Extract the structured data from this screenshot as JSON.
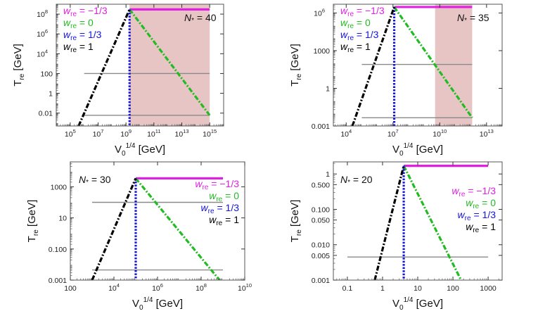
{
  "chart_data": [
    {
      "type": "line",
      "panel": "top-left",
      "title": "",
      "xlabel": "V0^1/4 [GeV]",
      "ylabel": "T re [GeV]",
      "x_scale": "log",
      "y_scale": "log",
      "xlim": [
        10000,
        1e+16
      ],
      "ylim": [
        0.0005,
        1000000000.0
      ],
      "x_ticks": [
        {
          "v": 100000.0,
          "b": "10",
          "e": "5"
        },
        {
          "v": 10000000.0,
          "b": "10",
          "e": "7"
        },
        {
          "v": 1000000000.0,
          "b": "10",
          "e": "9"
        },
        {
          "v": 100000000000.0,
          "b": "10",
          "e": "11"
        },
        {
          "v": 10000000000000.0,
          "b": "10",
          "e": "13"
        },
        {
          "v": 1000000000000000.0,
          "b": "10",
          "e": "15"
        }
      ],
      "y_ticks": [
        {
          "v": 0.01,
          "b": "0.01",
          "e": ""
        },
        {
          "v": 1,
          "b": "1",
          "e": ""
        },
        {
          "v": 100,
          "b": "100",
          "e": ""
        },
        {
          "v": 10000,
          "b": "10",
          "e": "4"
        },
        {
          "v": 1000000.0,
          "b": "10",
          "e": "6"
        },
        {
          "v": 100000000.0,
          "b": "10",
          "e": "8"
        }
      ],
      "annotation": {
        "prefix": "N",
        "sub": "*",
        "suffix": " = 40"
      },
      "shaded_region": {
        "x": [
          1800000000.0,
          1000000000000000.0
        ],
        "color": "#e8c5c5"
      },
      "hlines": [
        {
          "y": 100,
          "x": [
            1000000.0,
            1000000000000000.0
          ]
        },
        {
          "y": 0.006,
          "x": [
            1000000.0,
            1000000000000000.0
          ]
        }
      ],
      "series": [
        {
          "name": "w_re = −1/3",
          "color": "#e020e0",
          "style": "solid",
          "points": [
            [
              1800000000.0,
              300000000.0
            ],
            [
              1000000000000000.0,
              300000000.0
            ]
          ]
        },
        {
          "name": "w_re = 0",
          "color": "#22bb22",
          "style": "dashdot",
          "points": [
            [
              1800000000.0,
              300000000.0
            ],
            [
              1000000000000000.0,
              0.006
            ]
          ]
        },
        {
          "name": "w_re = 1/3",
          "color": "#1515d8",
          "style": "dotted",
          "points": [
            [
              1800000000.0,
              300000000.0
            ],
            [
              1800000000.0,
              0.0005
            ]
          ]
        },
        {
          "name": "w_re = 1",
          "color": "#000000",
          "style": "dashdot",
          "points": [
            [
              400000.0,
              0.0005
            ],
            [
              1800000000.0,
              300000000.0
            ]
          ]
        }
      ],
      "legend_pos": "top-left"
    },
    {
      "type": "line",
      "panel": "top-right",
      "title": "",
      "xlabel": "V0^1/4 [GeV]",
      "ylabel": "T re [GeV]",
      "x_scale": "log",
      "y_scale": "log",
      "xlim": [
        1500,
        100000000000000.0
      ],
      "ylim": [
        0.001,
        5000000.0
      ],
      "x_ticks": [
        {
          "v": 10000,
          "b": "10",
          "e": "4"
        },
        {
          "v": 10000000.0,
          "b": "10",
          "e": "7"
        },
        {
          "v": 10000000000.0,
          "b": "10",
          "e": "10"
        },
        {
          "v": 10000000000000.0,
          "b": "10",
          "e": "13"
        }
      ],
      "y_ticks": [
        {
          "v": 0.001,
          "b": "0.001",
          "e": ""
        },
        {
          "v": 1,
          "b": "1",
          "e": ""
        },
        {
          "v": 1000,
          "b": "1000",
          "e": ""
        },
        {
          "v": 1000000.0,
          "b": "10",
          "e": "6"
        }
      ],
      "annotation": {
        "prefix": "N",
        "sub": "*",
        "suffix": " = 35"
      },
      "shaded_region": {
        "x": [
          5000000000.0,
          1200000000000.0
        ],
        "color": "#e8c5c5"
      },
      "hlines": [
        {
          "y": 80,
          "x": [
            100000.0,
            1200000000000.0
          ]
        },
        {
          "y": 0.0045,
          "x": [
            100000.0,
            1200000000000.0
          ]
        }
      ],
      "series": [
        {
          "name": "w_re = −1/3",
          "color": "#e020e0",
          "style": "solid",
          "points": [
            [
              12000000.0,
              3000000.0
            ],
            [
              1200000000000.0,
              3000000.0
            ]
          ]
        },
        {
          "name": "w_re = 0",
          "color": "#22bb22",
          "style": "dashdot",
          "points": [
            [
              12000000.0,
              3000000.0
            ],
            [
              1200000000000.0,
              0.0045
            ]
          ]
        },
        {
          "name": "w_re = 1/3",
          "color": "#1515d8",
          "style": "dotted",
          "points": [
            [
              12000000.0,
              3000000.0
            ],
            [
              12000000.0,
              0.001
            ]
          ]
        },
        {
          "name": "w_re = 1",
          "color": "#000000",
          "style": "dashdot",
          "points": [
            [
              25000.0,
              0.001
            ],
            [
              12000000.0,
              3000000.0
            ]
          ]
        }
      ],
      "legend_pos": "top-left"
    },
    {
      "type": "line",
      "panel": "bottom-left",
      "title": "",
      "xlabel": "V0^1/4 [GeV]",
      "ylabel": "T re [GeV]",
      "x_scale": "log",
      "y_scale": "log",
      "xlim": [
        100,
        10000000000.0
      ],
      "ylim": [
        0.001,
        40000
      ],
      "x_ticks": [
        {
          "v": 100,
          "b": "100",
          "e": ""
        },
        {
          "v": 10000,
          "b": "10",
          "e": "4"
        },
        {
          "v": 1000000.0,
          "b": "10",
          "e": "6"
        },
        {
          "v": 100000000.0,
          "b": "10",
          "e": "8"
        },
        {
          "v": 10000000000.0,
          "b": "10",
          "e": "10"
        }
      ],
      "y_ticks": [
        {
          "v": 0.001,
          "b": "0.001",
          "e": ""
        },
        {
          "v": 0.1,
          "b": "0.100",
          "e": ""
        },
        {
          "v": 10,
          "b": "10",
          "e": ""
        },
        {
          "v": 1000,
          "b": "1000",
          "e": ""
        }
      ],
      "annotation": {
        "prefix": "N",
        "sub": "*",
        "suffix": " = 30"
      },
      "shaded_region": null,
      "hlines": [
        {
          "y": 100,
          "x": [
            1000,
            1000000000.0
          ]
        },
        {
          "y": 0.0045,
          "x": [
            1000,
            1000000000.0
          ]
        }
      ],
      "series": [
        {
          "name": "w_re = −1/3",
          "color": "#e020e0",
          "style": "solid",
          "points": [
            [
              100000.0,
              3500
            ],
            [
              1000000000.0,
              3500
            ]
          ]
        },
        {
          "name": "w_re = 0",
          "color": "#22bb22",
          "style": "dashdot",
          "points": [
            [
              100000.0,
              3500
            ],
            [
              700000000.0,
              0.001
            ]
          ]
        },
        {
          "name": "w_re = 1/3",
          "color": "#1515d8",
          "style": "dotted",
          "points": [
            [
              100000.0,
              3500
            ],
            [
              100000.0,
              0.001
            ]
          ]
        },
        {
          "name": "w_re = 1",
          "color": "#000000",
          "style": "dashdot",
          "points": [
            [
              1000,
              0.001
            ],
            [
              100000.0,
              3500
            ]
          ]
        }
      ],
      "legend_pos": "right"
    },
    {
      "type": "line",
      "panel": "bottom-right",
      "title": "",
      "xlabel": "V0^1/4 [GeV]",
      "ylabel": "T re [GeV]",
      "x_scale": "log",
      "y_scale": "log",
      "xlim": [
        0.04,
        2500
      ],
      "ylim": [
        0.001,
        2.2
      ],
      "x_ticks": [
        {
          "v": 0.1,
          "b": "0.1",
          "e": ""
        },
        {
          "v": 1,
          "b": "1",
          "e": ""
        },
        {
          "v": 10,
          "b": "10",
          "e": ""
        },
        {
          "v": 100,
          "b": "100",
          "e": ""
        },
        {
          "v": 1000,
          "b": "1000",
          "e": ""
        }
      ],
      "y_ticks": [
        {
          "v": 0.001,
          "b": "0.001",
          "e": ""
        },
        {
          "v": 0.005,
          "b": "0.005",
          "e": ""
        },
        {
          "v": 0.01,
          "b": "0.010",
          "e": ""
        },
        {
          "v": 0.05,
          "b": "0.050",
          "e": ""
        },
        {
          "v": 0.1,
          "b": "0.100",
          "e": ""
        },
        {
          "v": 0.5,
          "b": "0.500",
          "e": ""
        },
        {
          "v": 1,
          "b": "1",
          "e": ""
        }
      ],
      "annotation": {
        "prefix": "N",
        "sub": "*",
        "suffix": " = 20"
      },
      "shaded_region": null,
      "hlines": [
        {
          "y": 0.0045,
          "x": [
            0.1,
            1000
          ]
        }
      ],
      "series": [
        {
          "name": "w_re = −1/3",
          "color": "#e020e0",
          "style": "solid",
          "points": [
            [
              4,
              1.7
            ],
            [
              1000,
              1.7
            ]
          ]
        },
        {
          "name": "w_re = 0",
          "color": "#22bb22",
          "style": "dashdot",
          "points": [
            [
              4,
              1.7
            ],
            [
              170,
              0.001
            ]
          ]
        },
        {
          "name": "w_re = 1/3",
          "color": "#1515d8",
          "style": "dotted",
          "points": [
            [
              4,
              1.7
            ],
            [
              4,
              0.001
            ]
          ]
        },
        {
          "name": "w_re = 1",
          "color": "#000000",
          "style": "dashdot",
          "points": [
            [
              0.6,
              0.001
            ],
            [
              4,
              1.7
            ]
          ]
        }
      ],
      "legend_pos": "right"
    }
  ],
  "labels": {
    "x_main": "V",
    "x_sub": "0",
    "x_sup": "1/4",
    "x_unit": " [GeV]",
    "y_main": "T",
    "y_sub": "re",
    "y_unit": " [GeV]",
    "legend": [
      {
        "w": "w",
        "sub": "re",
        "value": " = −1/3",
        "color": "#e020e0"
      },
      {
        "w": "w",
        "sub": "re",
        "value": " = 0",
        "color": "#22bb22"
      },
      {
        "w": "w",
        "sub": "re",
        "value": " = 1/3",
        "color": "#1515d8"
      },
      {
        "w": "w",
        "sub": "re",
        "value": " = 1",
        "color": "#000000"
      }
    ]
  }
}
